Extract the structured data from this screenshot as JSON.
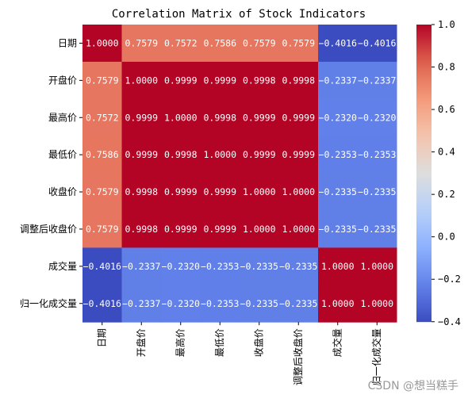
{
  "chart_data": {
    "type": "heatmap",
    "title": "Correlation Matrix of Stock Indicators",
    "rows": [
      "日期",
      "开盘价",
      "最高价",
      "最低价",
      "收盘价",
      "调整后收盘价",
      "成交量",
      "归一化成交量"
    ],
    "columns": [
      "日期",
      "开盘价",
      "最高价",
      "最低价",
      "收盘价",
      "调整后收盘价",
      "成交量",
      "归一化成交量"
    ],
    "values": [
      [
        1.0,
        0.7579,
        0.7572,
        0.7586,
        0.7579,
        0.7579,
        -0.4016,
        -0.4016
      ],
      [
        0.7579,
        1.0,
        0.9999,
        0.9999,
        0.9998,
        0.9998,
        -0.2337,
        -0.2337
      ],
      [
        0.7572,
        0.9999,
        1.0,
        0.9998,
        0.9999,
        0.9999,
        -0.232,
        -0.232
      ],
      [
        0.7586,
        0.9999,
        0.9998,
        1.0,
        0.9999,
        0.9999,
        -0.2353,
        -0.2353
      ],
      [
        0.7579,
        0.9998,
        0.9999,
        0.9999,
        1.0,
        1.0,
        -0.2335,
        -0.2335
      ],
      [
        0.7579,
        0.9998,
        0.9999,
        0.9999,
        1.0,
        1.0,
        -0.2335,
        -0.2335
      ],
      [
        -0.4016,
        -0.2337,
        -0.232,
        -0.2353,
        -0.2335,
        -0.2335,
        1.0,
        1.0
      ],
      [
        -0.4016,
        -0.2337,
        -0.232,
        -0.2353,
        -0.2335,
        -0.2335,
        1.0,
        1.0
      ]
    ],
    "colormap": "coolwarm",
    "value_range": [
      -0.4016,
      1.0
    ],
    "colorbar_ticks": [
      "1.0",
      "0.8",
      "0.6",
      "0.4",
      "0.2",
      "0.0",
      "−0.2",
      "−0.4"
    ],
    "colorbar_tick_values": [
      1.0,
      0.8,
      0.6,
      0.4,
      0.2,
      0.0,
      -0.2,
      -0.4
    ]
  },
  "watermark": "CSDN @想当糕手"
}
